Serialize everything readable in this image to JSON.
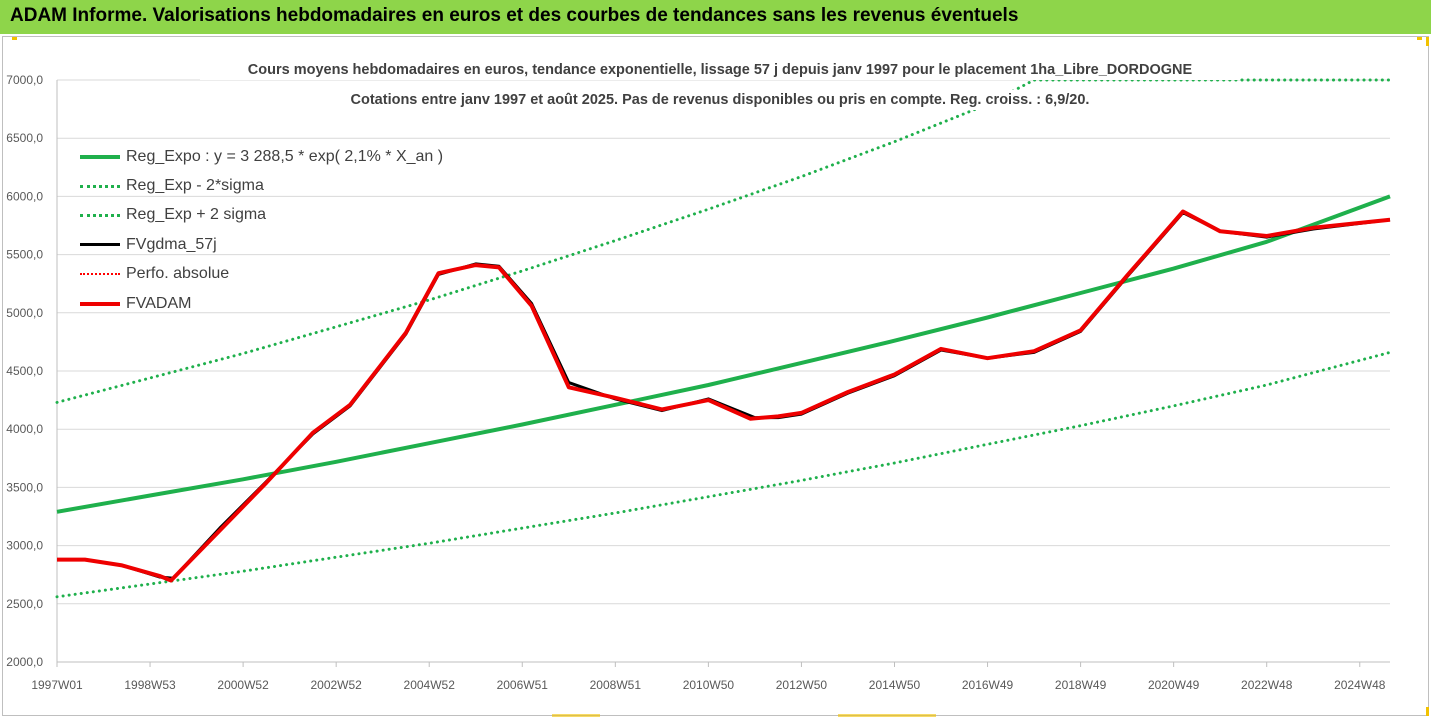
{
  "banner": {
    "title": "ADAM Informe. Valorisations hebdomadaires en euros et des courbes de tendances sans les revenus éventuels",
    "color": "#8ed54a"
  },
  "chart_data": {
    "type": "line",
    "title_line1": "Cours moyens hebdomadaires en euros, tendance exponentielle, lissage 57 j depuis janv 1997 pour le placement 1ha_Libre_DORDOGNE",
    "title_line2": "Cotations entre janv 1997 et août 2025.  Pas de revenus disponibles ou pris en compte. Reg. croiss. : 6,9/20.",
    "xlabel": "",
    "ylabel": "",
    "ylim": [
      2000,
      7000
    ],
    "xlim": [
      1997.0,
      2025.65
    ],
    "grid": true,
    "legend_position": "top-left",
    "y_ticks": [
      "2000,0",
      "2500,0",
      "3000,0",
      "3500,0",
      "4000,0",
      "4500,0",
      "5000,0",
      "5500,0",
      "6000,0",
      "6500,0",
      "7000,0"
    ],
    "x_ticks": [
      {
        "label": "1997W01",
        "x": 1997.0
      },
      {
        "label": "1998W53",
        "x": 1999.0
      },
      {
        "label": "2000W52",
        "x": 2001.0
      },
      {
        "label": "2002W52",
        "x": 2003.0
      },
      {
        "label": "2004W52",
        "x": 2005.0
      },
      {
        "label": "2006W51",
        "x": 2007.0
      },
      {
        "label": "2008W51",
        "x": 2009.0
      },
      {
        "label": "2010W50",
        "x": 2011.0
      },
      {
        "label": "2012W50",
        "x": 2013.0
      },
      {
        "label": "2014W50",
        "x": 2015.0
      },
      {
        "label": "2016W49",
        "x": 2017.0
      },
      {
        "label": "2018W49",
        "x": 2019.0
      },
      {
        "label": "2020W49",
        "x": 2021.0
      },
      {
        "label": "2022W48",
        "x": 2023.0
      },
      {
        "label": "2024W48",
        "x": 2025.0
      }
    ],
    "series": [
      {
        "name": "Reg_Expo : y = 3 288,5 * exp( 2,1% *  X_an )",
        "color": "#1fb04c",
        "style": "solid",
        "width": 4,
        "x": [
          1997.0,
          1999.0,
          2001.0,
          2003.0,
          2005.0,
          2007.0,
          2009.0,
          2011.0,
          2013.0,
          2015.0,
          2017.0,
          2019.0,
          2021.0,
          2023.0,
          2025.65
        ],
        "y": [
          3290,
          3430,
          3570,
          3720,
          3880,
          4040,
          4210,
          4380,
          4570,
          4760,
          4960,
          5170,
          5380,
          5610,
          6000
        ]
      },
      {
        "name": "Reg_Exp - 2*sigma",
        "color": "#1fb04c",
        "style": "dotted",
        "width": 3,
        "x": [
          1997.0,
          1999.0,
          2001.0,
          2003.0,
          2005.0,
          2007.0,
          2009.0,
          2011.0,
          2013.0,
          2015.0,
          2017.0,
          2019.0,
          2021.0,
          2023.0,
          2025.65
        ],
        "y": [
          2560,
          2670,
          2780,
          2900,
          3020,
          3150,
          3280,
          3420,
          3560,
          3710,
          3870,
          4030,
          4200,
          4380,
          4660
        ]
      },
      {
        "name": "Reg_Exp + 2 sigma",
        "color": "#1fb04c",
        "style": "dotted",
        "width": 3,
        "x": [
          1997.0,
          1999.0,
          2001.0,
          2003.0,
          2005.0,
          2007.0,
          2009.0,
          2011.0,
          2013.0,
          2015.0,
          2017.0,
          2018.0,
          2019.5,
          2021.0,
          2022.0,
          2023.0,
          2025.65
        ],
        "y": [
          4230,
          4440,
          4650,
          4880,
          5110,
          5360,
          5620,
          5890,
          6170,
          6470,
          6790,
          7000,
          7000,
          7000,
          7000,
          7000,
          7000
        ]
      },
      {
        "name": "FVgdma_57j",
        "color": "#000000",
        "style": "solid",
        "width": 3,
        "x": [
          1997.0,
          1997.6,
          1998.4,
          1999.2,
          1999.5,
          2000.5,
          2001.5,
          2002.5,
          2003.3,
          2004.5,
          2005.2,
          2006.0,
          2006.5,
          2007.2,
          2008.0,
          2009.0,
          2010.0,
          2011.0,
          2012.0,
          2012.5,
          2013.0,
          2014.0,
          2015.0,
          2016.0,
          2017.0,
          2018.0,
          2019.0,
          2020.0,
          2021.2,
          2022.0,
          2023.0,
          2024.0,
          2025.65
        ],
        "y": [
          2880,
          2880,
          2830,
          2730,
          2720,
          3150,
          3550,
          3960,
          4200,
          4820,
          5330,
          5420,
          5400,
          5080,
          4400,
          4260,
          4160,
          4260,
          4100,
          4100,
          4130,
          4310,
          4460,
          4680,
          4610,
          4660,
          4840,
          5310,
          5860,
          5700,
          5650,
          5720,
          5800
        ]
      },
      {
        "name": "Perfo. absolue",
        "color": "#ff0000",
        "style": "dotted",
        "width": 2,
        "x": [],
        "y": []
      },
      {
        "name": "FVADAM",
        "color": "#ee0000",
        "style": "solid",
        "width": 4,
        "x": [
          1997.0,
          1997.6,
          1998.4,
          1999.2,
          1999.45,
          2000.5,
          2001.5,
          2002.5,
          2003.3,
          2004.5,
          2005.2,
          2006.0,
          2006.5,
          2007.2,
          2008.0,
          2009.0,
          2010.0,
          2011.0,
          2011.9,
          2012.5,
          2013.0,
          2014.0,
          2015.0,
          2016.0,
          2017.0,
          2018.0,
          2019.0,
          2020.0,
          2021.2,
          2022.0,
          2023.0,
          2024.0,
          2025.65
        ],
        "y": [
          2880,
          2880,
          2830,
          2740,
          2700,
          3130,
          3540,
          3970,
          4210,
          4830,
          5340,
          5410,
          5390,
          5060,
          4360,
          4270,
          4170,
          4250,
          4090,
          4110,
          4140,
          4320,
          4470,
          4690,
          4610,
          4670,
          4850,
          5320,
          5870,
          5700,
          5660,
          5730,
          5800
        ]
      }
    ]
  }
}
